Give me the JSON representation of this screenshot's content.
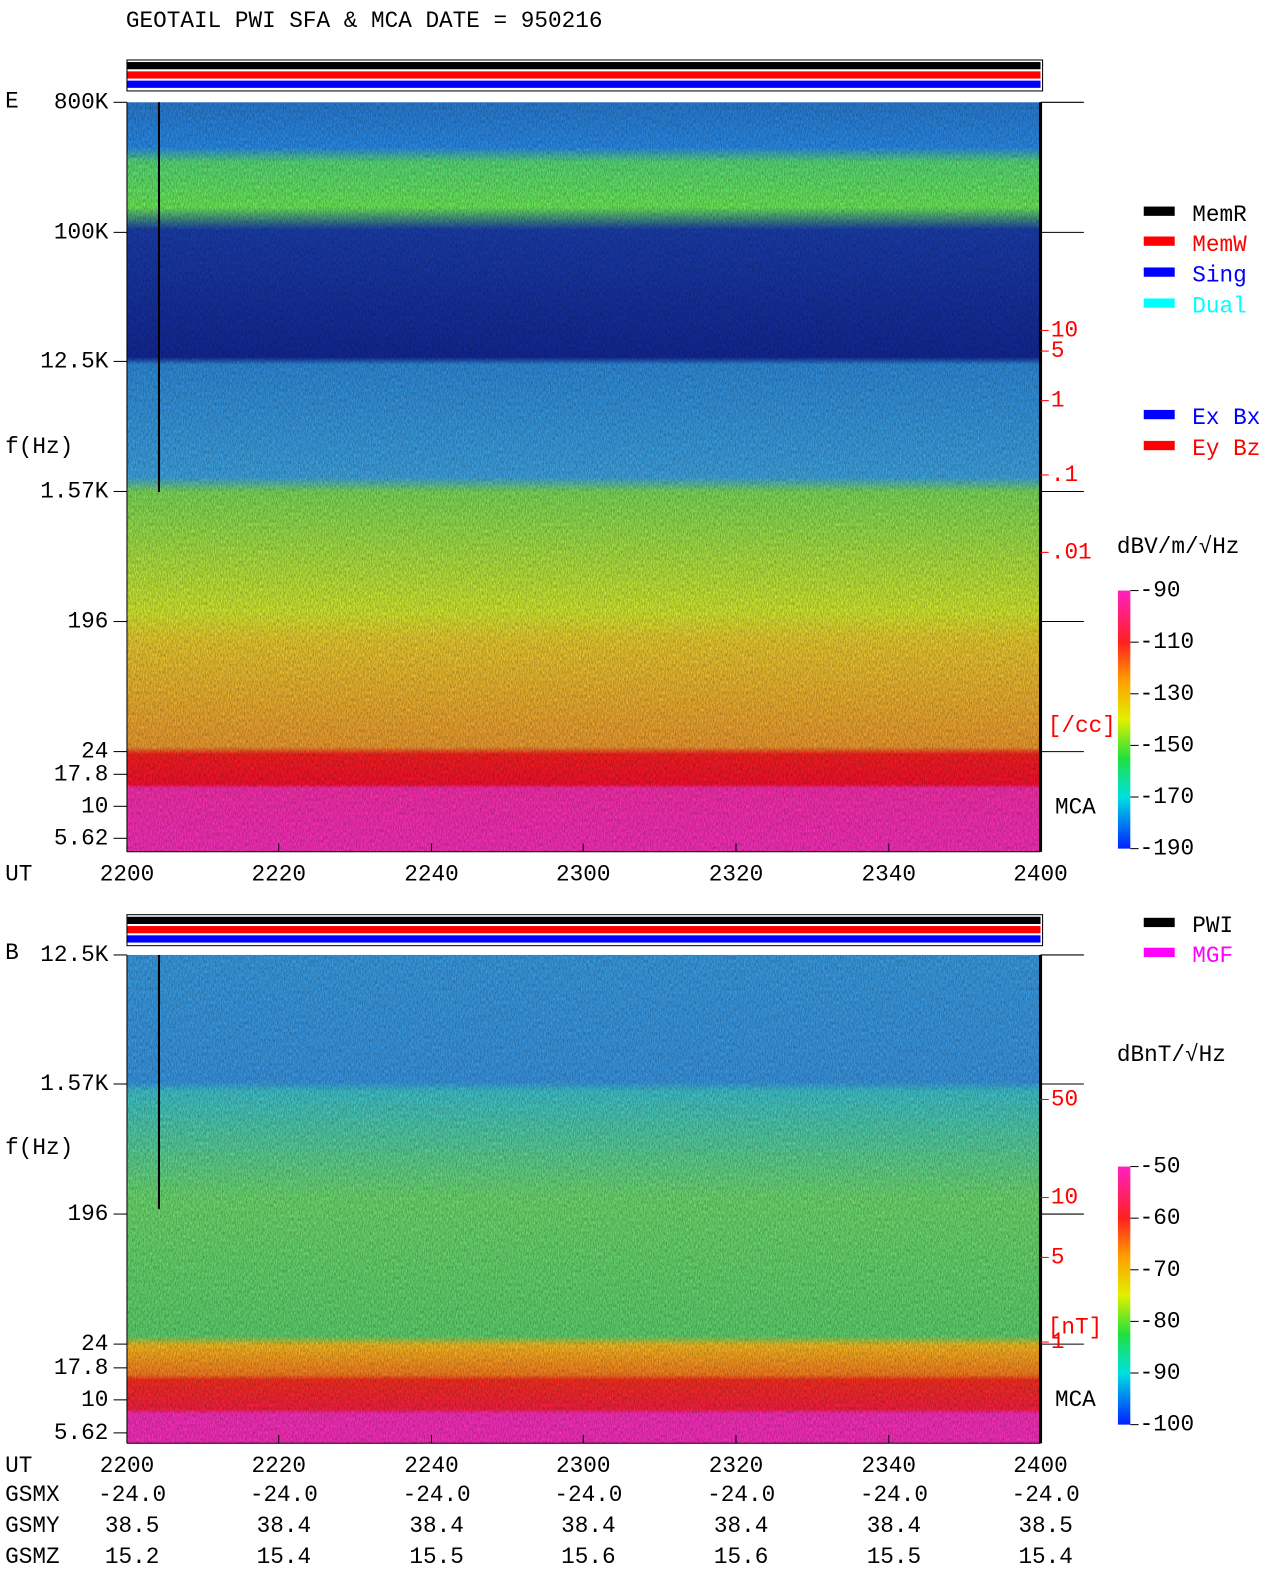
{
  "title": "GEOTAIL  PWI SFA & MCA   DATE = 950216",
  "chart_data": [
    {
      "type": "spectrogram",
      "panel_label": "E",
      "y_label": "f(Hz)",
      "x_label": "UT",
      "y_labels": [
        "800K",
        "100K",
        "12.5K",
        "1.57K",
        "196",
        "24",
        "17.8",
        "10",
        "5.62"
      ],
      "x": [
        "2200",
        "2220",
        "2240",
        "2300",
        "2320",
        "2340",
        "2400"
      ],
      "mca_label": "MCA",
      "right_scale": {
        "labels": [
          "10",
          "5",
          "1",
          ".1",
          ".01"
        ],
        "unit": "[/cc]"
      },
      "legend": [
        {
          "name": "MemR",
          "color": "#000000"
        },
        {
          "name": "MemW",
          "color": "#ff0000"
        },
        {
          "name": "Sing",
          "color": "#0000ff"
        },
        {
          "name": "Dual",
          "color": "#00ffff"
        }
      ],
      "legend2": [
        {
          "name": "Ex Bx",
          "color": "#0000ff"
        },
        {
          "name": "Ey Bz",
          "color": "#ff0000"
        }
      ],
      "colorbar": {
        "label": "dBV/m/√Hz",
        "lim": [
          -190,
          -90
        ],
        "ticks": [
          -90,
          -110,
          -130,
          -150,
          -170,
          -190
        ]
      }
    },
    {
      "type": "spectrogram",
      "panel_label": "B",
      "y_label": "f(Hz)",
      "x_label": "UT",
      "y_labels": [
        "12.5K",
        "1.57K",
        "196",
        "24",
        "17.8",
        "10",
        "5.62"
      ],
      "x": [
        "2200",
        "2220",
        "2240",
        "2300",
        "2320",
        "2340",
        "2400"
      ],
      "mca_label": "MCA",
      "right_scale": {
        "labels": [
          "50",
          "10",
          "5",
          "1"
        ],
        "unit": "[nT]"
      },
      "legend": [
        {
          "name": "PWI",
          "color": "#000000"
        },
        {
          "name": "MGF",
          "color": "#ff00ff"
        }
      ],
      "colorbar": {
        "label": "dBnT/√Hz",
        "lim": [
          -100,
          -50
        ],
        "ticks": [
          -50,
          -60,
          -70,
          -80,
          -90,
          -100
        ]
      }
    }
  ],
  "positions": {
    "labels": [
      "GSMX",
      "GSMY",
      "GSMZ"
    ],
    "rows": [
      [
        "-24.0",
        "-24.0",
        "-24.0",
        "-24.0",
        "-24.0",
        "-24.0",
        "-24.0"
      ],
      [
        "38.5",
        "38.4",
        "38.4",
        "38.4",
        "38.4",
        "38.4",
        "38.5"
      ],
      [
        "15.2",
        "15.4",
        "15.5",
        "15.6",
        "15.6",
        "15.5",
        "15.4"
      ]
    ]
  }
}
